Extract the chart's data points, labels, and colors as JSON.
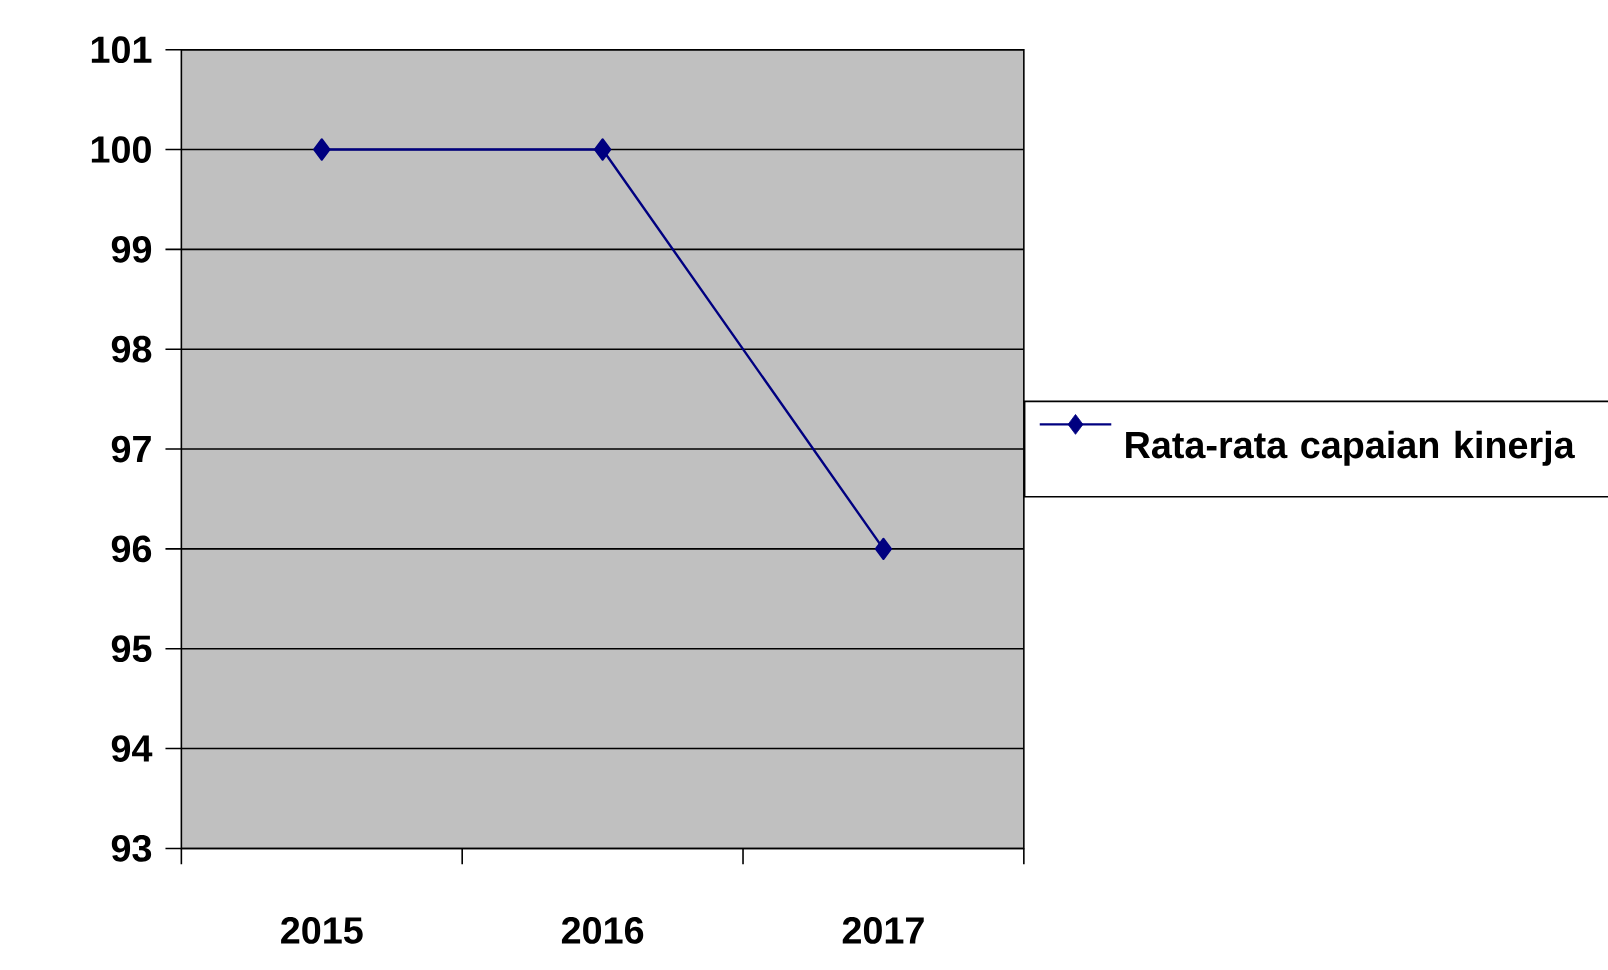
{
  "chart_data": {
    "type": "line",
    "categories": [
      "2015",
      "2016",
      "2017"
    ],
    "series": [
      {
        "name": "Rata-rata capaian kinerja",
        "color": "#000080",
        "values": [
          100,
          100,
          96
        ]
      }
    ],
    "ylim": [
      93,
      101
    ],
    "yticks": [
      93,
      94,
      95,
      96,
      97,
      98,
      99,
      100,
      101
    ],
    "grid": "y",
    "legend": "right",
    "marker": "diamond",
    "line_style": "solid"
  }
}
